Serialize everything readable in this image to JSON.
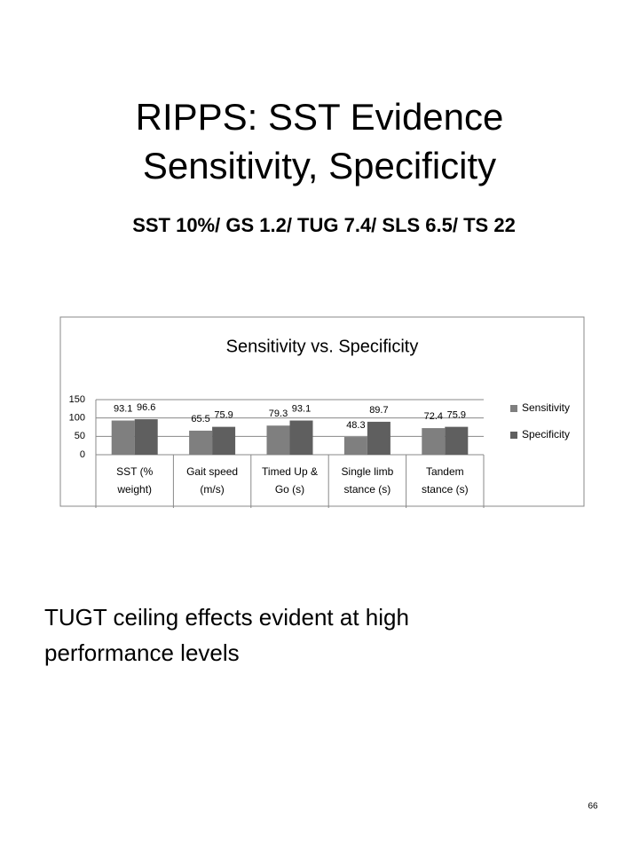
{
  "title": [
    "RIPPS: SST Evidence",
    "Sensitivity, Specificity"
  ],
  "subtitle": "SST 10%/ GS 1.2/ TUG 7.4/ SLS 6.5/ TS 22",
  "body": [
    "TUGT ceiling effects evident at high",
    "performance levels"
  ],
  "page_number": "66",
  "chart_data": {
    "type": "bar",
    "title": "Sensitivity vs. Specificity",
    "categories": [
      "SST (% weight)",
      "Gait speed (m/s)",
      "Timed Up & Go (s)",
      "Single limb stance (s)",
      "Tandem stance (s)"
    ],
    "series": [
      {
        "name": "Sensitivity",
        "color": "#7f7f7f",
        "values": [
          93.1,
          65.5,
          79.3,
          48.3,
          72.4
        ]
      },
      {
        "name": "Specificity",
        "color": "#5f5f5f",
        "values": [
          96.6,
          75.9,
          93.1,
          89.7,
          75.9
        ]
      }
    ],
    "ylim": [
      0,
      150
    ],
    "yticks": [
      0,
      50,
      100,
      150
    ],
    "grid": true,
    "legend": "right"
  }
}
